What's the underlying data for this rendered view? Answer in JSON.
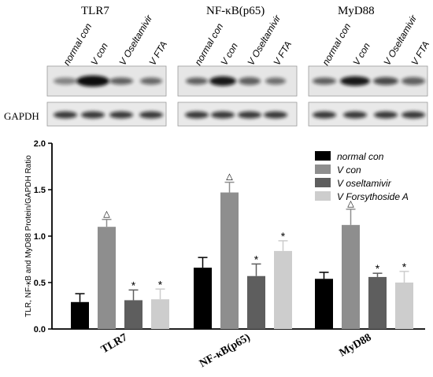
{
  "blot": {
    "panel_titles": [
      "TLR7",
      "NF-κB(p65)",
      "MyD88"
    ],
    "lane_labels": [
      "normal con",
      "V con",
      "V Oseltamivir",
      "V FTA"
    ],
    "row_label": "GAPDH"
  },
  "chart_data": {
    "type": "bar",
    "title": "",
    "xlabel": "",
    "ylabel": "TLR, NF-κB and MyD88 Protein/GAPDH Ratio",
    "ylim": [
      0,
      2.0
    ],
    "yticks": [
      "0.0",
      "0.5",
      "1.0",
      "1.5",
      "2.0"
    ],
    "categories": [
      "TLR7",
      "NF-κB(p65)",
      "MyD88"
    ],
    "legend_position": "top-right",
    "grid": false,
    "series": [
      {
        "name": "normal con",
        "color": "#000000",
        "values": [
          0.29,
          0.66,
          0.54
        ],
        "errors": [
          0.09,
          0.11,
          0.07
        ],
        "marks": [
          "",
          "",
          ""
        ]
      },
      {
        "name": "V con",
        "color": "#8e8e8e",
        "values": [
          1.1,
          1.47,
          1.12
        ],
        "errors": [
          0.08,
          0.11,
          0.17
        ],
        "marks": [
          "△",
          "△",
          "△"
        ]
      },
      {
        "name": "V oseltamivir",
        "color": "#5e5e5e",
        "values": [
          0.31,
          0.57,
          0.56
        ],
        "errors": [
          0.11,
          0.13,
          0.04
        ],
        "marks": [
          "*",
          "*",
          "*"
        ]
      },
      {
        "name": "V Forsythoside A",
        "color": "#cdcdcd",
        "values": [
          0.32,
          0.84,
          0.5
        ],
        "errors": [
          0.11,
          0.11,
          0.12
        ],
        "marks": [
          "*",
          "*",
          "*"
        ]
      }
    ]
  }
}
